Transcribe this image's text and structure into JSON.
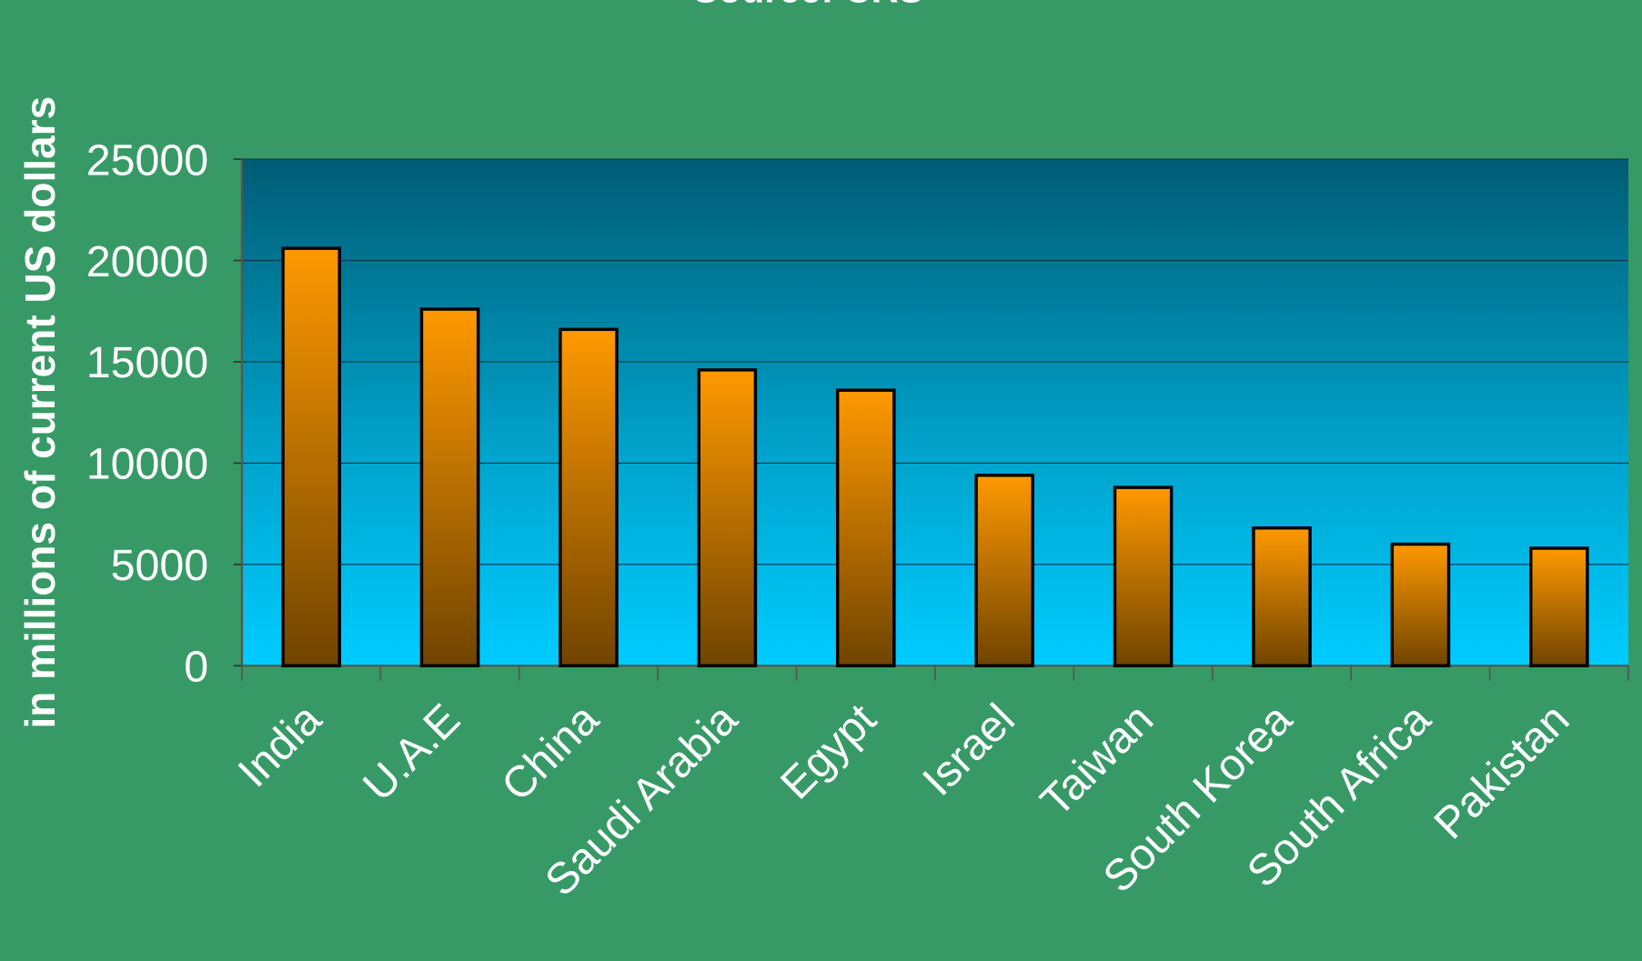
{
  "chart_data": {
    "type": "bar",
    "title": "Source: CRS",
    "y_label": "in millions of current US dollars",
    "categories": [
      "India",
      "U.A.E",
      "China",
      "Saudi Arabia",
      "Egypt",
      "Israel",
      "Taiwan",
      "South Korea",
      "South Africa",
      "Pakistan"
    ],
    "values": [
      20600,
      17600,
      16600,
      14600,
      13600,
      9400,
      8800,
      6800,
      6000,
      5800
    ],
    "color": "#ff9900",
    "ylim": [
      0,
      25000
    ],
    "yticks": [
      0,
      5000,
      10000,
      15000,
      20000,
      25000
    ],
    "grid": true
  }
}
